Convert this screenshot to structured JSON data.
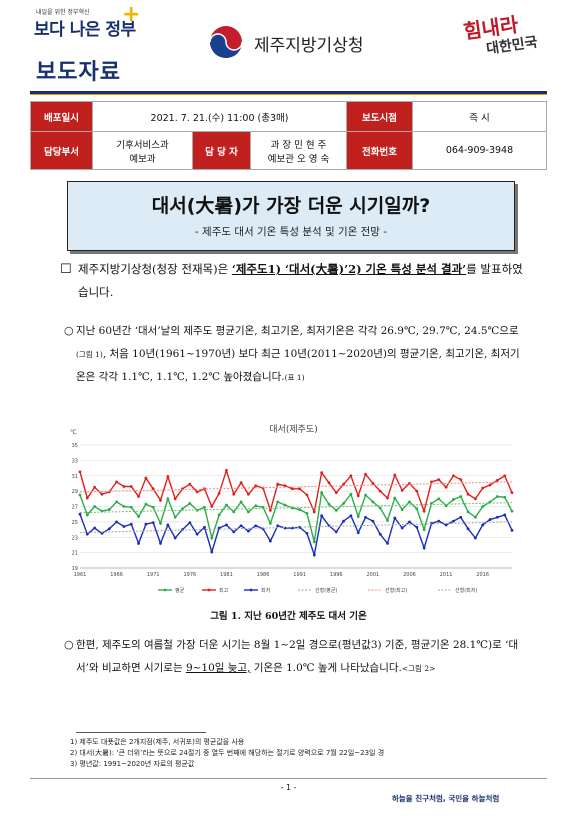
{
  "header": {
    "logo_small": "내일을 위한 정부혁신",
    "logo_main": "보다 나은 정부",
    "press_label": "보도자료",
    "agency": "제주지방기상청",
    "slogan_line1": "힘내라",
    "slogan_line2": "대한민국"
  },
  "info": {
    "release_date_label": "배포일시",
    "release_date": "2021. 7. 21.(수) 11:00 (총3매)",
    "embargo_label": "보도시점",
    "embargo": "즉 시",
    "dept_label": "담당부서",
    "dept_line1": "기후서비스과",
    "dept_line2": "예보과",
    "person_label": "담 당 자",
    "person_line1": "과 장 민 현 주",
    "person_line2": "예보관 오 영 숙",
    "phone_label": "전화번호",
    "phone": "064-909-3948"
  },
  "title": {
    "main": "대서(大暑)가 가장 더운 시기일까?",
    "sub": "- 제주도 대서 기온 특성 분석 및 기온 전망 -"
  },
  "body": {
    "p1_bullet": "☐",
    "p1_a": "제주지방기상청(청장 전재목)은 ",
    "p1_emph": "‘제주도1) ‘대서(大暑)’2) 기온 특성 분석 결과’",
    "p1_b": "를 발표하였습니다.",
    "p2_bullet": "○",
    "p2_a": "지난 60년간 ‘대서’날의 제주도 평균기온, 최고기온, 최저기온은 각각 26.9℃, 29.7℃, 24.5℃으로",
    "p2_ref1": "(그림 1)",
    "p2_b": ", 처음 10년(1961~1970년) 보다 최근 10년(2011~2020년)의 평균기온, 최고기온, 최저기온은 각각 1.1℃, 1.1℃, 1.2℃ 높아졌습니다.",
    "p2_ref2": "(표 1)",
    "p3_bullet": "○",
    "p3_a": "한편, 제주도의 여름철 가장 더운 시기는 8월 1~2일 경으로(평년값3) 기준, 평균기온 28.1℃)로 ‘대서’와 비교하면 시기로는 ",
    "p3_ul": "9~10일 늦고,",
    "p3_b": " 기온은 1.0℃ 높게 나타났습니다.",
    "p3_ref": "<그림 2>"
  },
  "figure_caption": "그림 1. 지난 60년간 제주도 대서 기온",
  "chart_data": {
    "type": "line",
    "title": "대서(제주도)",
    "ylabel": "℃",
    "ylim": [
      19,
      35
    ],
    "yticks": [
      19,
      21,
      23,
      25,
      27,
      29,
      31,
      33,
      35
    ],
    "xticks": [
      "1961",
      "1966",
      "1971",
      "1976",
      "1981",
      "1986",
      "1991",
      "1996",
      "2001",
      "2006",
      "2011",
      "2016"
    ],
    "x_start": 1961,
    "x_end": 2020,
    "grid": true,
    "legend_position": "bottom",
    "colors": {
      "avg": "#2eaa4a",
      "max": "#e0201e",
      "min": "#1a2eb8",
      "trend_avg": "#6fc06a",
      "trend_max": "#f08a7a",
      "trend_min": "#a8a8a8"
    },
    "series": [
      {
        "name": "평균",
        "values": [
          28.5,
          25.9,
          27.0,
          26.4,
          26.6,
          27.6,
          27.0,
          26.9,
          25.7,
          27.3,
          26.9,
          24.8,
          28.0,
          25.6,
          26.7,
          27.4,
          26.5,
          26.9,
          22.9,
          25.9,
          27.2,
          26.3,
          27.6,
          26.3,
          27.1,
          26.9,
          24.8,
          27.6,
          27.2,
          26.8,
          26.6,
          26.1,
          22.4,
          28.8,
          27.3,
          26.5,
          27.4,
          28.6,
          25.7,
          28.5,
          27.6,
          26.8,
          25.2,
          28.1,
          26.6,
          27.6,
          26.7,
          24.0,
          27.4,
          28.0,
          27.1,
          27.9,
          28.3,
          26.3,
          25.6,
          27.0,
          27.6,
          28.3,
          28.2,
          26.4
        ]
      },
      {
        "name": "최고",
        "values": [
          31.5,
          28.1,
          29.5,
          28.6,
          28.9,
          30.2,
          29.6,
          29.6,
          28.3,
          30.7,
          29.3,
          27.8,
          30.9,
          28.0,
          29.3,
          29.9,
          28.9,
          29.3,
          27.0,
          28.7,
          31.7,
          28.6,
          30.1,
          28.6,
          29.7,
          29.4,
          26.5,
          29.9,
          29.7,
          29.3,
          29.3,
          28.5,
          26.3,
          31.4,
          30.1,
          28.8,
          29.9,
          31.0,
          28.4,
          31.2,
          30.0,
          29.0,
          28.1,
          31.1,
          29.1,
          30.0,
          29.0,
          26.4,
          30.2,
          30.5,
          29.5,
          31.0,
          30.5,
          28.6,
          28.0,
          29.4,
          29.8,
          30.4,
          31.0,
          28.8
        ]
      },
      {
        "name": "최저",
        "values": [
          26.0,
          23.4,
          24.2,
          23.5,
          24.1,
          25.0,
          24.4,
          24.7,
          22.2,
          24.7,
          24.9,
          22.2,
          24.6,
          22.9,
          24.0,
          24.9,
          23.4,
          24.3,
          21.1,
          24.2,
          24.6,
          23.7,
          24.5,
          23.8,
          24.5,
          24.1,
          22.5,
          24.5,
          24.2,
          24.2,
          24.3,
          23.5,
          20.7,
          25.8,
          24.5,
          23.7,
          25.1,
          25.8,
          23.6,
          25.6,
          25.1,
          23.4,
          22.2,
          25.5,
          24.2,
          25.0,
          24.3,
          21.6,
          24.8,
          25.1,
          24.6,
          25.1,
          25.6,
          24.1,
          22.9,
          24.6,
          25.3,
          25.6,
          25.9,
          23.9
        ]
      },
      {
        "name": "선형(평균)",
        "values": [
          26.2,
          27.5
        ]
      },
      {
        "name": "선형(최고)",
        "values": [
          28.9,
          30.2
        ]
      },
      {
        "name": "선형(최저)",
        "values": [
          23.6,
          25.0
        ]
      }
    ]
  },
  "footnotes": {
    "f1": "1) 제주도 대푯값은 2개지점(제주, 서귀포)의 평균값을 사용",
    "f2": "2) 대서(大暑): ‘큰 더위’라는 뜻으로 24절기 중 열두 번째에 해당하는 절기로 양력으로 7월 22일~23일 경",
    "f3": "3) 평년값: 1991~2020년 자료의 평균값"
  },
  "footer": {
    "page": "- 1 -",
    "tagline": "하늘을 친구처럼, 국민을 하늘처럼"
  }
}
